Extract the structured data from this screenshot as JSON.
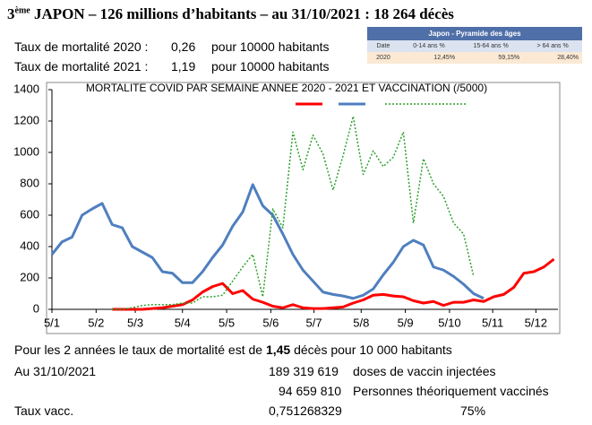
{
  "header": {
    "prefix": "3",
    "sup": "ème",
    "text": "JAPON – 126 millions d’habitants – au 31/10/2021 : 18 264 décès"
  },
  "stats": [
    [
      "Taux de mortalité 2020 :",
      "0,26",
      "pour 10000 habitants"
    ],
    [
      "Taux de mortalité 2021 :",
      "1,19",
      "pour 10000 habitants"
    ]
  ],
  "table": {
    "title": "Japon - Pyramide des âges",
    "headers": [
      "Date",
      "0-14 ans %",
      "15-64 ans %",
      "> 64 ans %"
    ],
    "rows": [
      [
        "2020",
        "12,45%",
        "59,15%",
        "28,40%"
      ]
    ]
  },
  "footer": {
    "sentence": [
      "Pour les 2 années le taux de mortalité est de ",
      "1,45",
      " décès pour 10 000 habitants"
    ],
    "rows": [
      [
        "Au 31/10/2021",
        "189 319 619",
        "doses de vaccin injectées"
      ],
      [
        "94 659 810",
        "Personnes théoriquement vaccinés"
      ],
      [
        "Taux vacc.",
        "0,751268329",
        "75%"
      ]
    ]
  },
  "chart_data": {
    "type": "line",
    "title": "MORTALITE COVID PAR SEMAINE ANNEE 2020 - 2021 ET VACCINATION (/5000)",
    "x": [
      0,
      1,
      2,
      3,
      4,
      5,
      6,
      7,
      8,
      9,
      10,
      11,
      12,
      13,
      14,
      15,
      16,
      17,
      18,
      19,
      20,
      21,
      22,
      23,
      24,
      25,
      26,
      27,
      28,
      29,
      30,
      31,
      32,
      33,
      34,
      35,
      36,
      37,
      38,
      39,
      40,
      41,
      42,
      43,
      44,
      45,
      46,
      47,
      48,
      49,
      50
    ],
    "xlim": [
      0,
      50.4
    ],
    "xticks": [
      {
        "value": 0,
        "label": "5/1"
      },
      {
        "value": 4.4,
        "label": "5/2"
      },
      {
        "value": 8.3,
        "label": "5/3"
      },
      {
        "value": 13,
        "label": "5/4"
      },
      {
        "value": 17.4,
        "label": "5/5"
      },
      {
        "value": 21.8,
        "label": "5/6"
      },
      {
        "value": 26.1,
        "label": "5/7"
      },
      {
        "value": 30.8,
        "label": "5/8"
      },
      {
        "value": 35.2,
        "label": "5/9"
      },
      {
        "value": 39.6,
        "label": "5/10"
      },
      {
        "value": 43.9,
        "label": "5/11"
      },
      {
        "value": 48.2,
        "label": "5/12"
      }
    ],
    "ylim": [
      0,
      1400
    ],
    "yticks": [
      0,
      200,
      400,
      600,
      800,
      1000,
      1200,
      1400
    ],
    "grid": false,
    "series": [
      {
        "color": "#ff0000",
        "dash": false,
        "values": [
          null,
          null,
          null,
          null,
          null,
          null,
          0,
          0,
          0,
          0,
          5,
          10,
          20,
          30,
          60,
          110,
          145,
          165,
          100,
          120,
          65,
          45,
          20,
          10,
          30,
          10,
          5,
          5,
          10,
          15,
          40,
          60,
          90,
          95,
          85,
          80,
          55,
          40,
          50,
          25,
          45,
          45,
          60,
          50,
          80,
          95,
          140,
          230,
          240,
          270,
          320
        ]
      },
      {
        "color": "#4f7fbf",
        "dash": false,
        "values": [
          350,
          430,
          460,
          600,
          640,
          675,
          540,
          520,
          400,
          365,
          330,
          240,
          230,
          170,
          170,
          240,
          330,
          410,
          530,
          620,
          795,
          660,
          600,
          480,
          350,
          250,
          180,
          110,
          95,
          85,
          70,
          90,
          130,
          220,
          300,
          400,
          440,
          410,
          270,
          250,
          210,
          160,
          100,
          70,
          null,
          null,
          null,
          null,
          null,
          null,
          null
        ]
      },
      {
        "color": "#2ca02c",
        "dash": true,
        "values": [
          null,
          null,
          null,
          null,
          null,
          null,
          0,
          0,
          10,
          25,
          30,
          30,
          30,
          40,
          40,
          80,
          80,
          90,
          180,
          270,
          350,
          80,
          640,
          520,
          1130,
          890,
          1110,
          990,
          760,
          980,
          1230,
          860,
          1010,
          910,
          970,
          1130,
          550,
          960,
          800,
          720,
          550,
          480,
          210,
          null,
          null,
          null,
          null,
          null,
          null,
          null,
          null
        ]
      }
    ]
  }
}
